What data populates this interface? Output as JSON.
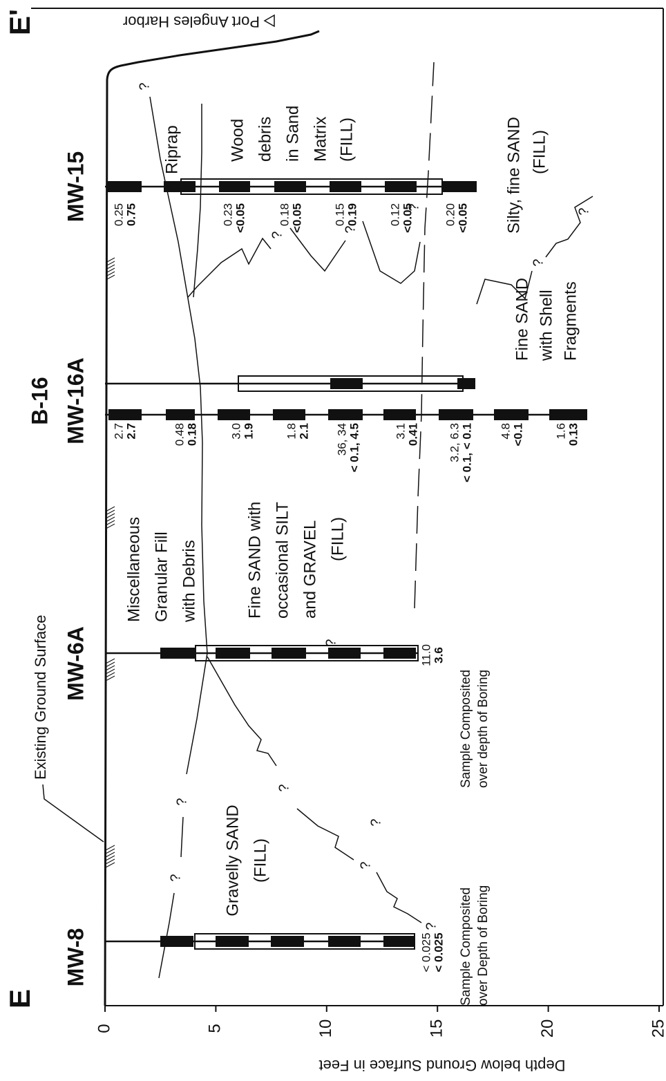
{
  "section_labels": {
    "start": "E",
    "end": "E'"
  },
  "annotations": {
    "ground_surface": "Existing Ground Surface",
    "harbor": "Port Angeles Harbor",
    "uncertain_contact": "?"
  },
  "axis": {
    "title": "Depth below Ground Surface in Feet",
    "lim": [
      0,
      25
    ],
    "ticks": [
      0,
      5,
      10,
      15,
      20,
      25
    ]
  },
  "wells": [
    {
      "name": "MW-8",
      "samples": [
        {
          "lines": [
            "< 0.025",
            "< 0.025"
          ]
        }
      ],
      "note": [
        "Sample Composited",
        "over Depth of Boring"
      ]
    },
    {
      "name": "MW-6A",
      "samples": [
        {
          "lines": [
            "11.0",
            "3.6"
          ]
        }
      ],
      "note": [
        "Sample Composited",
        "over depth of Boring"
      ]
    },
    {
      "name": "B-16",
      "samples": [
        {
          "lines": [
            "2.7",
            "2.7"
          ]
        },
        {
          "lines": [
            "0.48",
            "0.18"
          ]
        },
        {
          "lines": [
            "3.0",
            "1.9"
          ]
        },
        {
          "lines": [
            "1.8",
            "2.1"
          ]
        },
        {
          "lines": [
            "36, 34",
            "< 0.1, 4.5"
          ]
        },
        {
          "lines": [
            "3.1",
            "0.41"
          ]
        },
        {
          "lines": [
            "3.2, 6.3",
            "< 0.1, < 0.1"
          ]
        },
        {
          "lines": [
            "4.8",
            "<0.1"
          ]
        },
        {
          "lines": [
            "1.6",
            "0.13"
          ]
        }
      ]
    },
    {
      "name": "MW-16A"
    },
    {
      "name": "MW-15",
      "samples": [
        {
          "lines": [
            "0.25",
            "0.75"
          ]
        },
        {
          "lines": [
            "0.23",
            "<0.05"
          ]
        },
        {
          "lines": [
            "0.18",
            "<0.05"
          ]
        },
        {
          "lines": [
            "0.15",
            "0.19"
          ]
        },
        {
          "lines": [
            "0.12",
            "<0.05"
          ]
        },
        {
          "lines": [
            "0.20",
            "<0.05"
          ]
        }
      ]
    }
  ],
  "units": [
    {
      "lines": [
        "Gravelly SAND",
        "(FILL)"
      ]
    },
    {
      "lines": [
        "Miscellaneous",
        "Granular Fill",
        "with Debris"
      ]
    },
    {
      "lines": [
        "Fine SAND with",
        "occasional SILT",
        "and GRAVEL",
        "(FILL)"
      ]
    },
    {
      "lines": [
        "Riprap"
      ]
    },
    {
      "lines": [
        "Wood",
        "debris",
        "in Sand",
        "Matrix",
        "(FILL)"
      ]
    },
    {
      "lines": [
        "Silty, fine SAND",
        "(FILL)"
      ]
    },
    {
      "lines": [
        "Fine SAND",
        "with Shell",
        "Fragments"
      ]
    }
  ]
}
